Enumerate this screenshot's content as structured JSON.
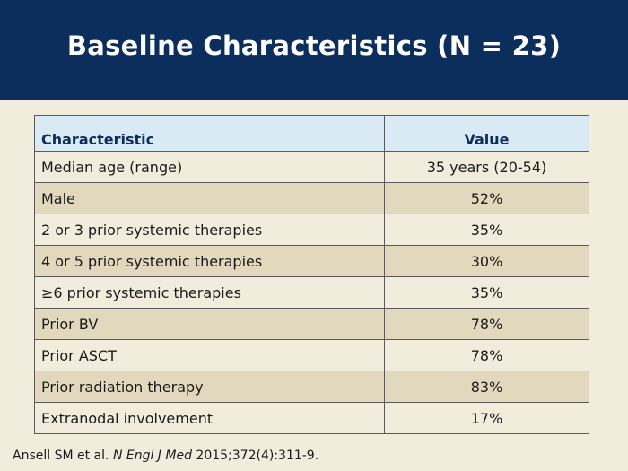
{
  "slide": {
    "title": "Baseline Characteristics (N = 23)"
  },
  "table": {
    "headers": [
      "Characteristic",
      "Value"
    ],
    "rows": [
      {
        "characteristic": "Median age (range)",
        "value": "35 years (20-54)"
      },
      {
        "characteristic": "Male",
        "value": "52%"
      },
      {
        "characteristic": "2 or 3 prior systemic therapies",
        "value": "35%"
      },
      {
        "characteristic": "4 or 5 prior systemic therapies",
        "value": "30%"
      },
      {
        "characteristic": "≥6 prior systemic therapies",
        "value": "35%"
      },
      {
        "characteristic": "Prior BV",
        "value": "78%"
      },
      {
        "characteristic": "Prior ASCT",
        "value": "78%"
      },
      {
        "characteristic": "Prior radiation therapy",
        "value": "83%"
      },
      {
        "characteristic": "Extranodal involvement",
        "value": "17%"
      }
    ]
  },
  "citation": {
    "authors": "Ansell SM et al.",
    "journal": "N Engl J Med",
    "details": "2015;372(4):311-9."
  },
  "colors": {
    "header_bg": "#0b2e5c",
    "slide_bg": "#f2ecdc",
    "table_header_bg": "#daeaf4",
    "row_dark_bg": "#e2d8bd"
  }
}
